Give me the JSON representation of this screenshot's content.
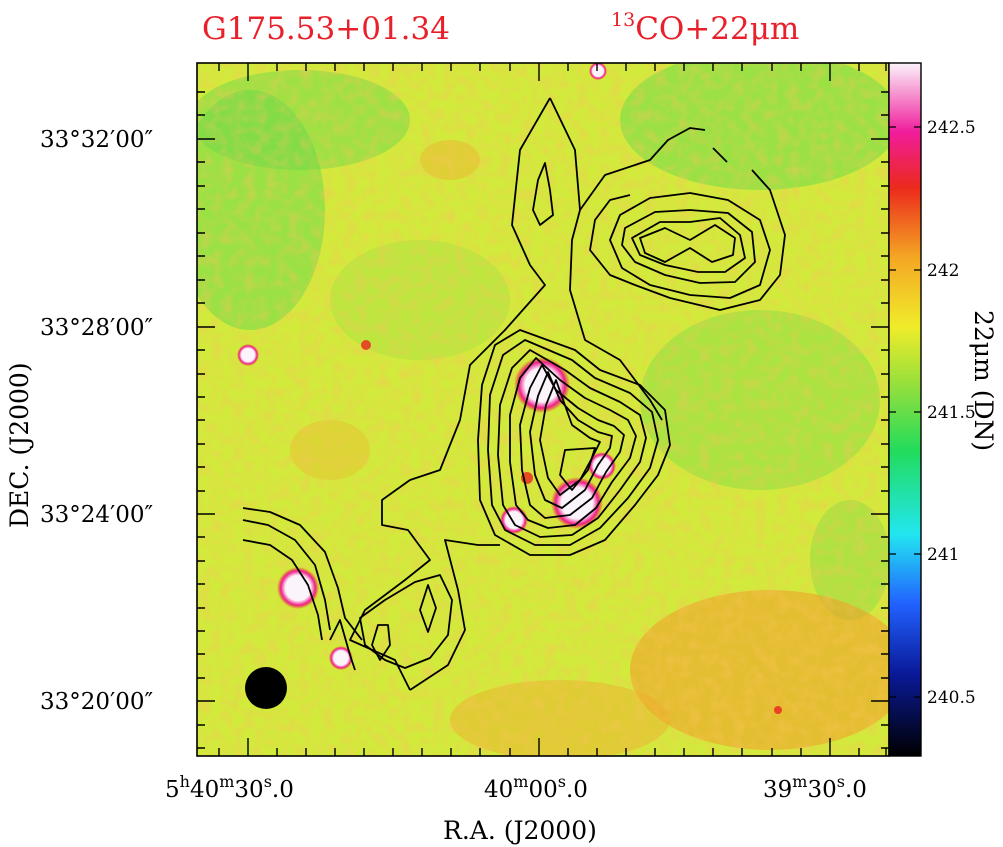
{
  "chart_data": {
    "type": "heatmap",
    "title_left": "G175.53+01.34",
    "title_right_sup": "13",
    "title_right": "CO+22μm",
    "xlabel": "R.A.  (J2000)",
    "ylabel": "DEC.  (J2000)",
    "x_ticks": [
      {
        "h": "5",
        "m": "40",
        "s": "30",
        "frac": "0"
      },
      {
        "h": "",
        "m": "40",
        "s": "00",
        "frac": "0"
      },
      {
        "h": "",
        "m": "39",
        "s": "30",
        "frac": "0"
      }
    ],
    "y_ticks": [
      "33°32′00″",
      "33°28′00″",
      "33°24′00″",
      "33°20′00″"
    ],
    "colorbar": {
      "label": "22μm (DN)",
      "ticks": [
        "242.5",
        "242",
        "241.5",
        "241",
        "240.5"
      ],
      "range": [
        240.3,
        242.7
      ]
    },
    "colors": {
      "title": "#e8202a",
      "background_map": "#d6ec3a",
      "contour": "#000000"
    },
    "beam": "filled-circle"
  }
}
